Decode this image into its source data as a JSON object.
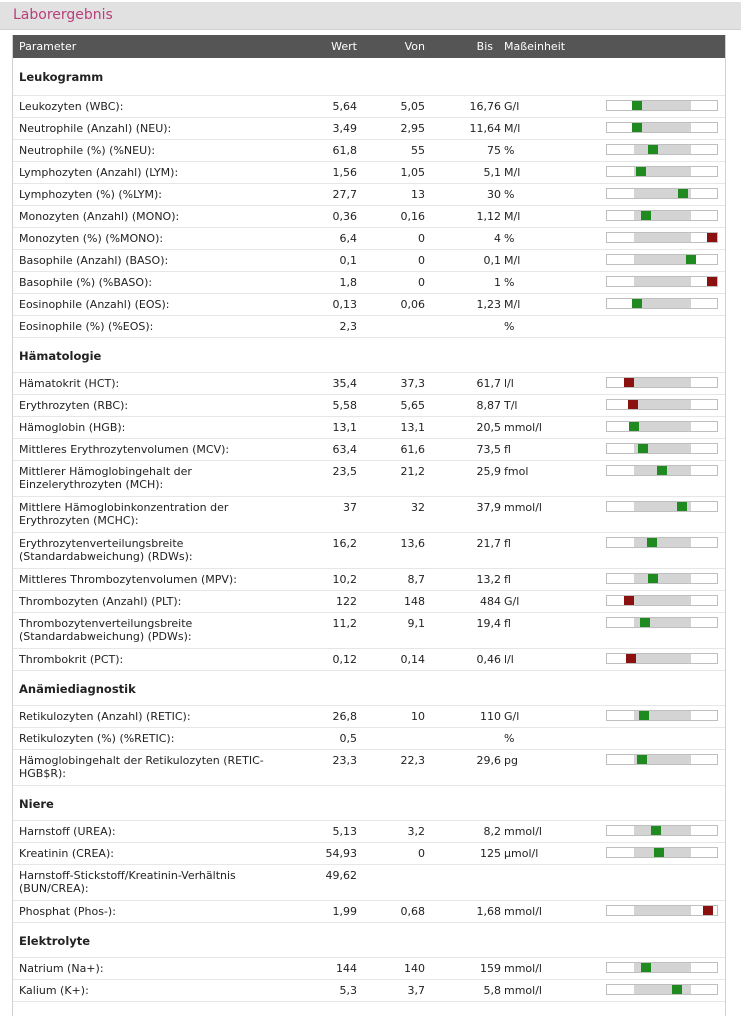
{
  "title": "Laborergebnis",
  "columns": {
    "parameter": "Parameter",
    "wert": "Wert",
    "von": "Von",
    "bis": "Bis",
    "einheit": "Maßeinheit"
  },
  "colors": {
    "title": "#b8407a",
    "header_bg": "#555555",
    "normal": "#1f8a1f",
    "abnormal": "#8b1010",
    "range": "#d4d4d4"
  },
  "sections": [
    {
      "name": "Leukogramm",
      "rows": [
        {
          "p": "Leukozyten (WBC):",
          "w": "5,64",
          "von": "5,05",
          "bis": "16,76",
          "u": "G/l",
          "pos": 0.05,
          "status": "normal"
        },
        {
          "p": "Neutrophile (Anzahl) (NEU):",
          "w": "3,49",
          "von": "2,95",
          "bis": "11,64",
          "u": "M/l",
          "pos": 0.06,
          "status": "normal"
        },
        {
          "p": "Neutrophile (%) (%NEU):",
          "w": "61,8",
          "von": "55",
          "bis": "75",
          "u": "%",
          "pos": 0.34,
          "status": "normal"
        },
        {
          "p": "Lymphozyten (Anzahl) (LYM):",
          "w": "1,56",
          "von": "1,05",
          "bis": "5,1",
          "u": "M/l",
          "pos": 0.13,
          "status": "normal"
        },
        {
          "p": "Lymphozyten (%) (%LYM):",
          "w": "27,7",
          "von": "13",
          "bis": "30",
          "u": "%",
          "pos": 0.86,
          "status": "normal"
        },
        {
          "p": "Monozyten (Anzahl) (MONO):",
          "w": "0,36",
          "von": "0,16",
          "bis": "1,12",
          "u": "M/l",
          "pos": 0.21,
          "status": "normal"
        },
        {
          "p": "Monozyten (%) (%MONO):",
          "w": "6,4",
          "von": "0",
          "bis": "4",
          "u": "%",
          "pos": 1.6,
          "status": "high"
        },
        {
          "p": "Basophile (Anzahl) (BASO):",
          "w": "0,1",
          "von": "0",
          "bis": "0,1",
          "u": "M/l",
          "pos": 1.0,
          "status": "normal"
        },
        {
          "p": "Basophile (%) (%BASO):",
          "w": "1,8",
          "von": "0",
          "bis": "1",
          "u": "%",
          "pos": 1.8,
          "status": "high"
        },
        {
          "p": "Eosinophile (Anzahl) (EOS):",
          "w": "0,13",
          "von": "0,06",
          "bis": "1,23",
          "u": "M/l",
          "pos": 0.06,
          "status": "normal"
        },
        {
          "p": "Eosinophile (%) (%EOS):",
          "w": "2,3",
          "von": "",
          "bis": "",
          "u": "%",
          "pos": null,
          "status": "none"
        }
      ]
    },
    {
      "name": "Hämatologie",
      "rows": [
        {
          "p": "Hämatokrit (HCT):",
          "w": "35,4",
          "von": "37,3",
          "bis": "61,7",
          "u": "l/l",
          "pos": -0.08,
          "status": "low"
        },
        {
          "p": "Erythrozyten (RBC):",
          "w": "5,58",
          "von": "5,65",
          "bis": "8,87",
          "u": "T/l",
          "pos": -0.02,
          "status": "low"
        },
        {
          "p": "Hämoglobin (HGB):",
          "w": "13,1",
          "von": "13,1",
          "bis": "20,5",
          "u": "mmol/l",
          "pos": 0.0,
          "status": "normal"
        },
        {
          "p": "Mittleres Erythrozytenvolumen (MCV):",
          "w": "63,4",
          "von": "61,6",
          "bis": "73,5",
          "u": "fl",
          "pos": 0.15,
          "status": "normal"
        },
        {
          "p": "Mittlerer Hämoglobingehalt der Einzelerythrozyten (MCH):",
          "w": "23,5",
          "von": "21,2",
          "bis": "25,9",
          "u": "fmol",
          "pos": 0.49,
          "status": "normal"
        },
        {
          "p": "Mittlere Hämoglobinkonzentration der Erythrozyten (MCHC):",
          "w": "37",
          "von": "32",
          "bis": "37,9",
          "u": "mmol/l",
          "pos": 0.85,
          "status": "normal"
        },
        {
          "p": "Erythrozytenverteilungsbreite (Standardabweichung) (RDWs):",
          "w": "16,2",
          "von": "13,6",
          "bis": "21,7",
          "u": "fl",
          "pos": 0.32,
          "status": "normal"
        },
        {
          "p": "Mittleres Thrombozytenvolumen (MPV):",
          "w": "10,2",
          "von": "8,7",
          "bis": "13,2",
          "u": "fl",
          "pos": 0.33,
          "status": "normal"
        },
        {
          "p": "Thrombozyten (Anzahl) (PLT):",
          "w": "122",
          "von": "148",
          "bis": "484",
          "u": "G/l",
          "pos": -0.08,
          "status": "low"
        },
        {
          "p": "Thrombozytenverteilungsbreite (Standardabweichung) (PDWs):",
          "w": "11,2",
          "von": "9,1",
          "bis": "19,4",
          "u": "fl",
          "pos": 0.2,
          "status": "normal"
        },
        {
          "p": "Thrombokrit (PCT):",
          "w": "0,12",
          "von": "0,14",
          "bis": "0,46",
          "u": "l/l",
          "pos": -0.06,
          "status": "low"
        }
      ]
    },
    {
      "name": "Anämiediagnostik",
      "rows": [
        {
          "p": "Retikulozyten (Anzahl) (RETIC):",
          "w": "26,8",
          "von": "10",
          "bis": "110",
          "u": "G/l",
          "pos": 0.17,
          "status": "normal"
        },
        {
          "p": "Retikulozyten (%) (%RETIC):",
          "w": "0,5",
          "von": "",
          "bis": "",
          "u": "%",
          "pos": null,
          "status": "none"
        },
        {
          "p": "Hämoglobingehalt der Retikulozyten (RETIC-HGB$R):",
          "w": "23,3",
          "von": "22,3",
          "bis": "29,6",
          "u": "pg",
          "pos": 0.14,
          "status": "normal"
        }
      ]
    },
    {
      "name": "Niere",
      "rows": [
        {
          "p": "Harnstoff (UREA):",
          "w": "5,13",
          "von": "3,2",
          "bis": "8,2",
          "u": "mmol/l",
          "pos": 0.39,
          "status": "normal"
        },
        {
          "p": "Kreatinin (CREA):",
          "w": "54,93",
          "von": "0",
          "bis": "125",
          "u": "µmol/l",
          "pos": 0.44,
          "status": "normal"
        },
        {
          "p": "Harnstoff-Stickstoff/Kreatinin-Verhältnis (BUN/CREA):",
          "w": "49,62",
          "von": "",
          "bis": "",
          "u": "",
          "pos": null,
          "status": "none"
        },
        {
          "p": "Phosphat (Phos-):",
          "w": "1,99",
          "von": "0,68",
          "bis": "1,68",
          "u": "mmol/l",
          "pos": 1.3,
          "status": "high"
        }
      ]
    },
    {
      "name": "Elektrolyte",
      "rows": [
        {
          "p": "Natrium (Na+):",
          "w": "144",
          "von": "140",
          "bis": "159",
          "u": "mmol/l",
          "pos": 0.21,
          "status": "normal"
        },
        {
          "p": "Kalium (K+):",
          "w": "5,3",
          "von": "3,7",
          "bis": "5,8",
          "u": "mmol/l",
          "pos": 0.76,
          "status": "normal"
        }
      ]
    }
  ]
}
